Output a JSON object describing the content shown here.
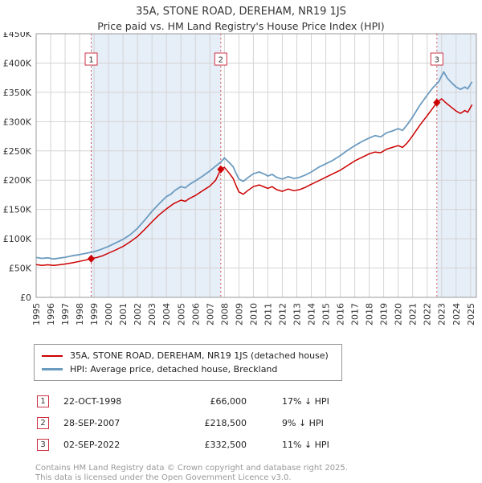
{
  "title": "35A, STONE ROAD, DEREHAM, NR19 1JS",
  "subtitle": "Price paid vs. HM Land Registry's House Price Index (HPI)",
  "chart_data": {
    "type": "line",
    "xlim": [
      1995,
      2025.4
    ],
    "ylim": [
      0,
      450000
    ],
    "grid": true,
    "y_ticks": [
      {
        "value": 0,
        "label": "£0"
      },
      {
        "value": 50000,
        "label": "£50K"
      },
      {
        "value": 100000,
        "label": "£100K"
      },
      {
        "value": 150000,
        "label": "£150K"
      },
      {
        "value": 200000,
        "label": "£200K"
      },
      {
        "value": 250000,
        "label": "£250K"
      },
      {
        "value": 300000,
        "label": "£300K"
      },
      {
        "value": 350000,
        "label": "£350K"
      },
      {
        "value": 400000,
        "label": "£400K"
      },
      {
        "value": 450000,
        "label": "£450K"
      }
    ],
    "x_ticks": [
      1995,
      1996,
      1997,
      1998,
      1999,
      2000,
      2001,
      2002,
      2003,
      2004,
      2005,
      2006,
      2007,
      2008,
      2009,
      2010,
      2011,
      2012,
      2013,
      2014,
      2015,
      2016,
      2017,
      2018,
      2019,
      2020,
      2021,
      2022,
      2023,
      2024,
      2025
    ],
    "colors": {
      "property": "#cc0000",
      "hpi": "#6c9bc0",
      "band": "#e6eef8",
      "grid": "#d4d4d4",
      "sale_line": "#d25555",
      "sale_box_border": "#cc3344"
    },
    "ownership_bands": [
      {
        "from": 1998.8,
        "to": 2007.75
      },
      {
        "from": 2022.67,
        "to": 2025.4
      }
    ],
    "sales": [
      {
        "label": "1",
        "x": 1998.8,
        "price": 66000
      },
      {
        "label": "2",
        "x": 2007.75,
        "price": 218500
      },
      {
        "label": "3",
        "x": 2022.67,
        "price": 332500
      }
    ],
    "series": [
      {
        "name": "35A, STONE ROAD, DEREHAM, NR19 1JS (detached house)",
        "color": "#cc0000",
        "width": 1.5,
        "points": [
          [
            1995,
            56000
          ],
          [
            1995.4,
            54500
          ],
          [
            1995.8,
            55500
          ],
          [
            1996.2,
            54500
          ],
          [
            1996.6,
            55500
          ],
          [
            1997,
            57000
          ],
          [
            1997.5,
            59000
          ],
          [
            1998,
            61500
          ],
          [
            1998.4,
            63500
          ],
          [
            1998.8,
            66000
          ],
          [
            1999.2,
            68000
          ],
          [
            1999.6,
            71000
          ],
          [
            2000,
            75500
          ],
          [
            2000.5,
            81000
          ],
          [
            2001,
            87000
          ],
          [
            2001.5,
            95000
          ],
          [
            2002,
            104000
          ],
          [
            2002.5,
            116000
          ],
          [
            2003,
            129000
          ],
          [
            2003.5,
            141000
          ],
          [
            2004,
            151000
          ],
          [
            2004.5,
            160000
          ],
          [
            2005,
            166000
          ],
          [
            2005.3,
            164000
          ],
          [
            2005.6,
            169000
          ],
          [
            2006,
            174000
          ],
          [
            2006.5,
            182000
          ],
          [
            2007,
            190000
          ],
          [
            2007.4,
            200000
          ],
          [
            2007.75,
            218500
          ],
          [
            2008,
            222000
          ],
          [
            2008.3,
            213000
          ],
          [
            2008.6,
            203000
          ],
          [
            2008.8,
            191000
          ],
          [
            2009,
            180000
          ],
          [
            2009.3,
            176000
          ],
          [
            2009.6,
            182000
          ],
          [
            2010,
            189000
          ],
          [
            2010.4,
            192000
          ],
          [
            2010.8,
            188000
          ],
          [
            2011,
            186000
          ],
          [
            2011.3,
            189000
          ],
          [
            2011.6,
            184000
          ],
          [
            2012,
            181000
          ],
          [
            2012.4,
            185000
          ],
          [
            2012.8,
            182000
          ],
          [
            2013.2,
            184000
          ],
          [
            2013.6,
            188000
          ],
          [
            2014,
            193000
          ],
          [
            2014.5,
            199000
          ],
          [
            2015,
            205000
          ],
          [
            2015.5,
            211000
          ],
          [
            2016,
            217000
          ],
          [
            2016.5,
            225000
          ],
          [
            2017,
            233000
          ],
          [
            2017.5,
            239000
          ],
          [
            2018,
            245000
          ],
          [
            2018.4,
            248000
          ],
          [
            2018.8,
            247000
          ],
          [
            2019.2,
            253000
          ],
          [
            2019.6,
            256000
          ],
          [
            2020,
            259000
          ],
          [
            2020.3,
            256000
          ],
          [
            2020.6,
            263000
          ],
          [
            2021,
            276000
          ],
          [
            2021.5,
            294000
          ],
          [
            2022,
            310000
          ],
          [
            2022.3,
            320000
          ],
          [
            2022.67,
            332500
          ],
          [
            2023,
            339000
          ],
          [
            2023.3,
            332000
          ],
          [
            2023.6,
            326000
          ],
          [
            2024,
            318000
          ],
          [
            2024.3,
            314000
          ],
          [
            2024.6,
            319000
          ],
          [
            2024.8,
            316000
          ],
          [
            2025.1,
            329000
          ]
        ]
      },
      {
        "name": "HPI: Average price, detached house, Breckland",
        "color": "#6c9bc0",
        "width": 1.8,
        "points": [
          [
            1995,
            68000
          ],
          [
            1995.4,
            66500
          ],
          [
            1995.8,
            67500
          ],
          [
            1996.2,
            65500
          ],
          [
            1996.6,
            67000
          ],
          [
            1997,
            68500
          ],
          [
            1997.5,
            71000
          ],
          [
            1998,
            73000
          ],
          [
            1998.5,
            75500
          ],
          [
            1999,
            78000
          ],
          [
            1999.5,
            82000
          ],
          [
            2000,
            87000
          ],
          [
            2000.5,
            93000
          ],
          [
            2001,
            99000
          ],
          [
            2001.5,
            107000
          ],
          [
            2002,
            118000
          ],
          [
            2002.5,
            132000
          ],
          [
            2003,
            147000
          ],
          [
            2003.5,
            160000
          ],
          [
            2004,
            172000
          ],
          [
            2004.3,
            176000
          ],
          [
            2004.6,
            183000
          ],
          [
            2005,
            189000
          ],
          [
            2005.3,
            187000
          ],
          [
            2005.6,
            193000
          ],
          [
            2006,
            199000
          ],
          [
            2006.5,
            207000
          ],
          [
            2007,
            216000
          ],
          [
            2007.4,
            224000
          ],
          [
            2007.8,
            232000
          ],
          [
            2008,
            238000
          ],
          [
            2008.3,
            231000
          ],
          [
            2008.6,
            223000
          ],
          [
            2008.8,
            212000
          ],
          [
            2009,
            202000
          ],
          [
            2009.3,
            198000
          ],
          [
            2009.6,
            204000
          ],
          [
            2010,
            211000
          ],
          [
            2010.4,
            214000
          ],
          [
            2010.8,
            210000
          ],
          [
            2011,
            207000
          ],
          [
            2011.3,
            210000
          ],
          [
            2011.6,
            205000
          ],
          [
            2012,
            202000
          ],
          [
            2012.4,
            206000
          ],
          [
            2012.8,
            203000
          ],
          [
            2013.2,
            205000
          ],
          [
            2013.6,
            209000
          ],
          [
            2014,
            214000
          ],
          [
            2014.5,
            222000
          ],
          [
            2015,
            228000
          ],
          [
            2015.5,
            234000
          ],
          [
            2016,
            242000
          ],
          [
            2016.5,
            251000
          ],
          [
            2017,
            259000
          ],
          [
            2017.5,
            266000
          ],
          [
            2018,
            272000
          ],
          [
            2018.4,
            276000
          ],
          [
            2018.8,
            274000
          ],
          [
            2019.2,
            281000
          ],
          [
            2019.6,
            284000
          ],
          [
            2020,
            288000
          ],
          [
            2020.3,
            285000
          ],
          [
            2020.6,
            294000
          ],
          [
            2021,
            308000
          ],
          [
            2021.5,
            328000
          ],
          [
            2022,
            345000
          ],
          [
            2022.4,
            358000
          ],
          [
            2022.8,
            368000
          ],
          [
            2023,
            378000
          ],
          [
            2023.15,
            385000
          ],
          [
            2023.4,
            374000
          ],
          [
            2023.7,
            366000
          ],
          [
            2024,
            359000
          ],
          [
            2024.3,
            355000
          ],
          [
            2024.6,
            359000
          ],
          [
            2024.8,
            356000
          ],
          [
            2025.1,
            368000
          ]
        ]
      }
    ]
  },
  "legend": {
    "items": [
      {
        "label": "35A, STONE ROAD, DEREHAM, NR19 1JS (detached house)"
      },
      {
        "label": "HPI: Average price, detached house, Breckland"
      }
    ]
  },
  "sales_table": {
    "rows": [
      {
        "num": "1",
        "date": "22-OCT-1998",
        "price": "£66,000",
        "vs_hpi": "17% ↓ HPI"
      },
      {
        "num": "2",
        "date": "28-SEP-2007",
        "price": "£218,500",
        "vs_hpi": "9% ↓ HPI"
      },
      {
        "num": "3",
        "date": "02-SEP-2022",
        "price": "£332,500",
        "vs_hpi": "11% ↓ HPI"
      }
    ]
  },
  "footer": {
    "line1": "Contains HM Land Registry data © Crown copyright and database right 2025.",
    "line2": "This data is licensed under the Open Government Licence v3.0."
  }
}
